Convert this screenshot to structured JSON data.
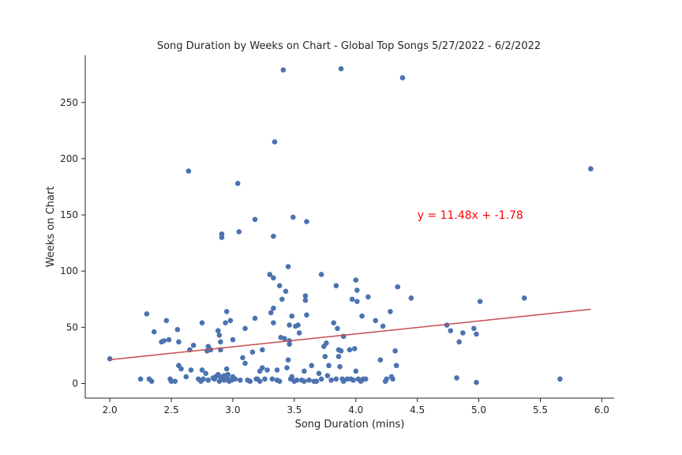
{
  "chart_data": {
    "type": "scatter",
    "title": "Song Duration by Weeks on Chart - Global Top Songs 5/27/2022 - 6/2/2022",
    "xlabel": "Song Duration (mins)",
    "ylabel": "Weeks on Chart",
    "xlim": [
      1.8,
      6.1
    ],
    "ylim": [
      -13,
      292
    ],
    "xticks": [
      "2.0",
      "2.5",
      "3.0",
      "3.5",
      "4.0",
      "4.5",
      "5.0",
      "5.5",
      "6.0"
    ],
    "yticks": [
      "0",
      "50",
      "100",
      "150",
      "200",
      "250"
    ],
    "grid": false,
    "point_color": "#4c72b0",
    "line_color": "#c44e52",
    "annotation_color": "#ff0000",
    "fit_line": {
      "slope": 11.48,
      "intercept": -1.78,
      "x_range": [
        2.0,
        5.91
      ]
    },
    "annotation": {
      "text": "y = 11.48x + -1.78",
      "x": 4.5,
      "y": 150
    },
    "points": [
      [
        2.0,
        22
      ],
      [
        2.25,
        4
      ],
      [
        2.3,
        62
      ],
      [
        2.32,
        4
      ],
      [
        2.34,
        2
      ],
      [
        2.36,
        46
      ],
      [
        2.42,
        37
      ],
      [
        2.44,
        38
      ],
      [
        2.46,
        56
      ],
      [
        2.48,
        39
      ],
      [
        2.49,
        4
      ],
      [
        2.5,
        2
      ],
      [
        2.53,
        2
      ],
      [
        2.55,
        48
      ],
      [
        2.56,
        37
      ],
      [
        2.56,
        16
      ],
      [
        2.58,
        13
      ],
      [
        2.64,
        189
      ],
      [
        2.62,
        6
      ],
      [
        2.65,
        30
      ],
      [
        2.66,
        12
      ],
      [
        2.68,
        34
      ],
      [
        2.72,
        4
      ],
      [
        2.74,
        2
      ],
      [
        2.75,
        54
      ],
      [
        2.75,
        12
      ],
      [
        2.76,
        4
      ],
      [
        2.78,
        9
      ],
      [
        2.79,
        29
      ],
      [
        2.8,
        3
      ],
      [
        2.8,
        33
      ],
      [
        2.82,
        30
      ],
      [
        2.84,
        5
      ],
      [
        2.85,
        4
      ],
      [
        2.86,
        6
      ],
      [
        2.88,
        8
      ],
      [
        2.88,
        47
      ],
      [
        2.89,
        2
      ],
      [
        2.89,
        43
      ],
      [
        2.9,
        37
      ],
      [
        2.9,
        6
      ],
      [
        2.9,
        30
      ],
      [
        2.91,
        133
      ],
      [
        2.91,
        130
      ],
      [
        2.92,
        4
      ],
      [
        2.93,
        7
      ],
      [
        2.93,
        3
      ],
      [
        2.94,
        54
      ],
      [
        2.95,
        64
      ],
      [
        2.95,
        13
      ],
      [
        2.96,
        8
      ],
      [
        2.96,
        4
      ],
      [
        2.97,
        2
      ],
      [
        2.98,
        56
      ],
      [
        2.99,
        3
      ],
      [
        3.0,
        39
      ],
      [
        3.0,
        6
      ],
      [
        3.02,
        4
      ],
      [
        3.04,
        178
      ],
      [
        3.05,
        135
      ],
      [
        3.06,
        3
      ],
      [
        3.08,
        23
      ],
      [
        3.1,
        18
      ],
      [
        3.1,
        49
      ],
      [
        3.12,
        3
      ],
      [
        3.14,
        2
      ],
      [
        3.16,
        28
      ],
      [
        3.18,
        146
      ],
      [
        3.18,
        58
      ],
      [
        3.19,
        4
      ],
      [
        3.2,
        4
      ],
      [
        3.22,
        2
      ],
      [
        3.22,
        11
      ],
      [
        3.24,
        30
      ],
      [
        3.24,
        14
      ],
      [
        3.26,
        4
      ],
      [
        3.28,
        12
      ],
      [
        3.3,
        97
      ],
      [
        3.31,
        63
      ],
      [
        3.32,
        4
      ],
      [
        3.33,
        67
      ],
      [
        3.33,
        54
      ],
      [
        3.33,
        131
      ],
      [
        3.33,
        94
      ],
      [
        3.34,
        215
      ],
      [
        3.36,
        12
      ],
      [
        3.36,
        3
      ],
      [
        3.38,
        87
      ],
      [
        3.38,
        2
      ],
      [
        3.39,
        41
      ],
      [
        3.4,
        75
      ],
      [
        3.41,
        279
      ],
      [
        3.42,
        40
      ],
      [
        3.43,
        82
      ],
      [
        3.44,
        14
      ],
      [
        3.45,
        21
      ],
      [
        3.45,
        104
      ],
      [
        3.46,
        52
      ],
      [
        3.46,
        38
      ],
      [
        3.46,
        35
      ],
      [
        3.47,
        4
      ],
      [
        3.48,
        60
      ],
      [
        3.48,
        6
      ],
      [
        3.49,
        148
      ],
      [
        3.5,
        2
      ],
      [
        3.51,
        51
      ],
      [
        3.52,
        3
      ],
      [
        3.53,
        52
      ],
      [
        3.54,
        45
      ],
      [
        3.56,
        3
      ],
      [
        3.58,
        2
      ],
      [
        3.58,
        11
      ],
      [
        3.59,
        74
      ],
      [
        3.59,
        78
      ],
      [
        3.6,
        144
      ],
      [
        3.6,
        61
      ],
      [
        3.62,
        3
      ],
      [
        3.64,
        16
      ],
      [
        3.66,
        2
      ],
      [
        3.68,
        2
      ],
      [
        3.7,
        9
      ],
      [
        3.72,
        97
      ],
      [
        3.72,
        4
      ],
      [
        3.74,
        33
      ],
      [
        3.75,
        24
      ],
      [
        3.76,
        36
      ],
      [
        3.77,
        7
      ],
      [
        3.78,
        16
      ],
      [
        3.8,
        3
      ],
      [
        3.82,
        54
      ],
      [
        3.84,
        4
      ],
      [
        3.84,
        87
      ],
      [
        3.85,
        49
      ],
      [
        3.86,
        30
      ],
      [
        3.86,
        24
      ],
      [
        3.87,
        15
      ],
      [
        3.88,
        280
      ],
      [
        3.88,
        29
      ],
      [
        3.89,
        4
      ],
      [
        3.9,
        42
      ],
      [
        3.9,
        2
      ],
      [
        3.93,
        4
      ],
      [
        3.95,
        30
      ],
      [
        3.96,
        4
      ],
      [
        3.97,
        75
      ],
      [
        3.98,
        3
      ],
      [
        3.99,
        31
      ],
      [
        4.0,
        92
      ],
      [
        4.0,
        11
      ],
      [
        4.01,
        73
      ],
      [
        4.01,
        83
      ],
      [
        4.02,
        4
      ],
      [
        4.04,
        2
      ],
      [
        4.05,
        60
      ],
      [
        4.05,
        3
      ],
      [
        4.06,
        4
      ],
      [
        4.08,
        4
      ],
      [
        4.1,
        77
      ],
      [
        4.16,
        56
      ],
      [
        4.2,
        21
      ],
      [
        4.22,
        51
      ],
      [
        4.24,
        2
      ],
      [
        4.25,
        4
      ],
      [
        4.28,
        64
      ],
      [
        4.29,
        6
      ],
      [
        4.3,
        4
      ],
      [
        4.32,
        29
      ],
      [
        4.33,
        16
      ],
      [
        4.34,
        86
      ],
      [
        4.38,
        272
      ],
      [
        4.45,
        76
      ],
      [
        4.74,
        52
      ],
      [
        4.77,
        47
      ],
      [
        4.82,
        5
      ],
      [
        4.84,
        37
      ],
      [
        4.87,
        45
      ],
      [
        4.96,
        49
      ],
      [
        4.98,
        44
      ],
      [
        4.98,
        1
      ],
      [
        5.01,
        73
      ],
      [
        5.37,
        76
      ],
      [
        5.66,
        4
      ],
      [
        5.91,
        191
      ]
    ]
  }
}
